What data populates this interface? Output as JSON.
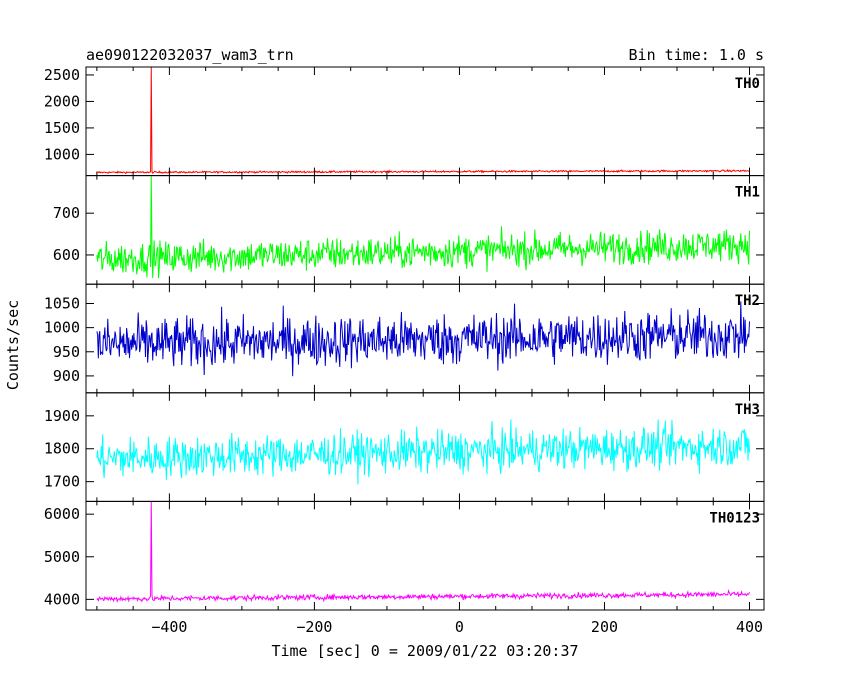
{
  "header": {
    "title": "ae090122032037_wam3_trn",
    "bin_time": "Bin time: 1.0 s"
  },
  "chart_data": {
    "type": "line",
    "title": "ae090122032037_wam3_trn",
    "subtitle": "Bin time: 1.0 s",
    "xlabel": "Time [sec] 0 = 2009/01/22 03:20:37",
    "ylabel": "Counts/sec",
    "xlim": [
      -515,
      420
    ],
    "x_ticks": [
      -400,
      -200,
      0,
      200,
      400
    ],
    "x_tick_labels": [
      "−400",
      "−200",
      "0",
      "200",
      "400"
    ],
    "data_x_range": [
      -500,
      400
    ],
    "bin_time_s": 1.0,
    "grid": false,
    "legend": "none",
    "panels": [
      {
        "name": "TH0",
        "color": "#ff0000",
        "ylim": [
          600,
          2650
        ],
        "y_ticks": [
          1000,
          1500,
          2000,
          2500
        ],
        "baseline_start": 660,
        "baseline_end": 690,
        "noise": 12,
        "spike_time": -425,
        "spike_value": 2650
      },
      {
        "name": "TH1",
        "color": "#00ff00",
        "ylim": [
          530,
          790
        ],
        "y_ticks": [
          600,
          700
        ],
        "baseline_start": 590,
        "baseline_end": 625,
        "noise": 28,
        "spike_time": -425,
        "spike_value": 790
      },
      {
        "name": "TH2",
        "color": "#0000cc",
        "ylim": [
          865,
          1090
        ],
        "y_ticks": [
          900,
          950,
          1000,
          1050
        ],
        "baseline_start": 965,
        "baseline_end": 985,
        "noise": 38,
        "spike_time": null,
        "spike_value": null
      },
      {
        "name": "TH3",
        "color": "#00ffff",
        "ylim": [
          1640,
          1970
        ],
        "y_ticks": [
          1700,
          1800,
          1900
        ],
        "baseline_start": 1770,
        "baseline_end": 1810,
        "noise": 45,
        "spike_time": null,
        "spike_value": null
      },
      {
        "name": "TH0123",
        "color": "#ff00ff",
        "ylim": [
          3750,
          6300
        ],
        "y_ticks": [
          4000,
          5000,
          6000
        ],
        "baseline_start": 4010,
        "baseline_end": 4120,
        "noise": 45,
        "spike_time": -425,
        "spike_value": 6300
      }
    ]
  }
}
